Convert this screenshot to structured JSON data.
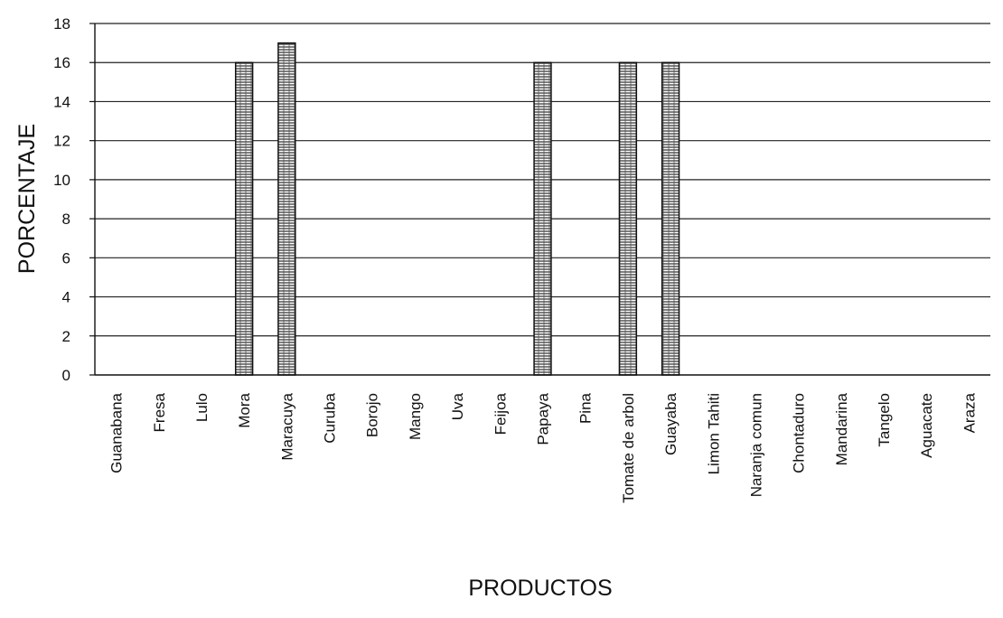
{
  "chart_data": {
    "type": "bar",
    "title": "",
    "xlabel": "PRODUCTOS",
    "ylabel": "PORCENTAJE",
    "ylim": [
      0,
      18
    ],
    "yticks": [
      0,
      2,
      4,
      6,
      8,
      10,
      12,
      14,
      16,
      18
    ],
    "grid": true,
    "legend": "none",
    "categories": [
      "Guanabana",
      "Fresa",
      "Lulo",
      "Mora",
      "Maracuya",
      "Curuba",
      "Borojo",
      "Mango",
      "Uva",
      "Feijoa",
      "Papaya",
      "Pina",
      "Tomate de arbol",
      "Guayaba",
      "Limon Tahiti",
      "Naranja comun",
      "Chontaduro",
      "Mandarina",
      "Tangelo",
      "Aguacate",
      "Araza"
    ],
    "values": [
      0,
      0,
      0,
      16,
      17,
      0,
      0,
      0,
      0,
      0,
      16,
      0,
      16,
      16,
      0,
      0,
      0,
      0,
      0,
      0,
      0
    ],
    "colors": {
      "bar_fill": "#ffffff",
      "bar_hatch": "#222222",
      "bar_stroke": "#111111",
      "grid": "#222222",
      "axis": "#111111"
    }
  }
}
